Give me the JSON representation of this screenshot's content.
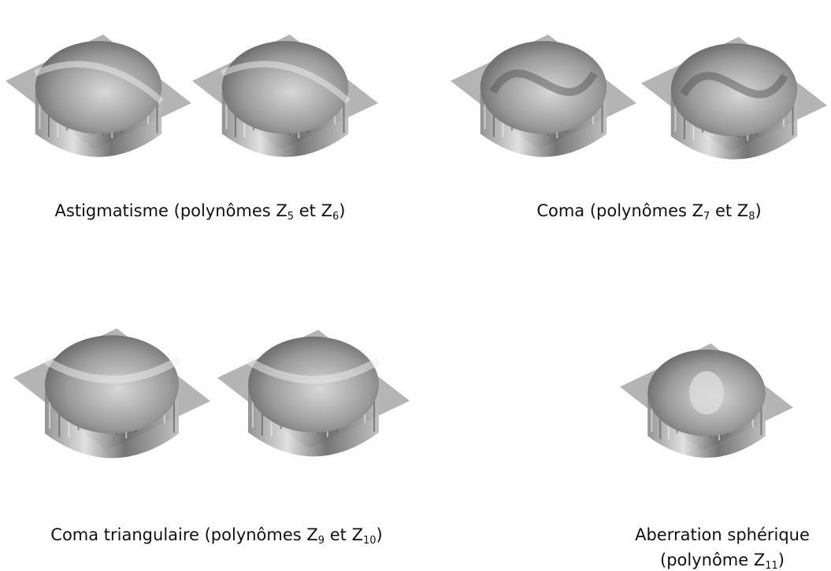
{
  "figures": [
    {
      "caption": [
        {
          "text": "Astigmatisme (polynômes Z"
        },
        {
          "sub": "5"
        },
        {
          "text": " et Z"
        },
        {
          "sub": "6"
        },
        {
          "text": ")"
        }
      ]
    },
    {
      "caption": [
        {
          "text": "Coma (polynômes Z"
        },
        {
          "sub": "7"
        },
        {
          "text": " et Z"
        },
        {
          "sub": "8"
        },
        {
          "text": ")"
        }
      ]
    },
    {
      "caption": [
        {
          "text": "Coma triangulaire (polynômes Z"
        },
        {
          "sub": "9"
        },
        {
          "text": " et Z"
        },
        {
          "sub": "10"
        },
        {
          "text": ")"
        }
      ]
    },
    {
      "caption": [
        {
          "text": "Aberration sphérique"
        },
        {
          "text": "(polynôme Z"
        },
        {
          "sub": "11"
        },
        {
          "text": ")"
        }
      ]
    }
  ]
}
